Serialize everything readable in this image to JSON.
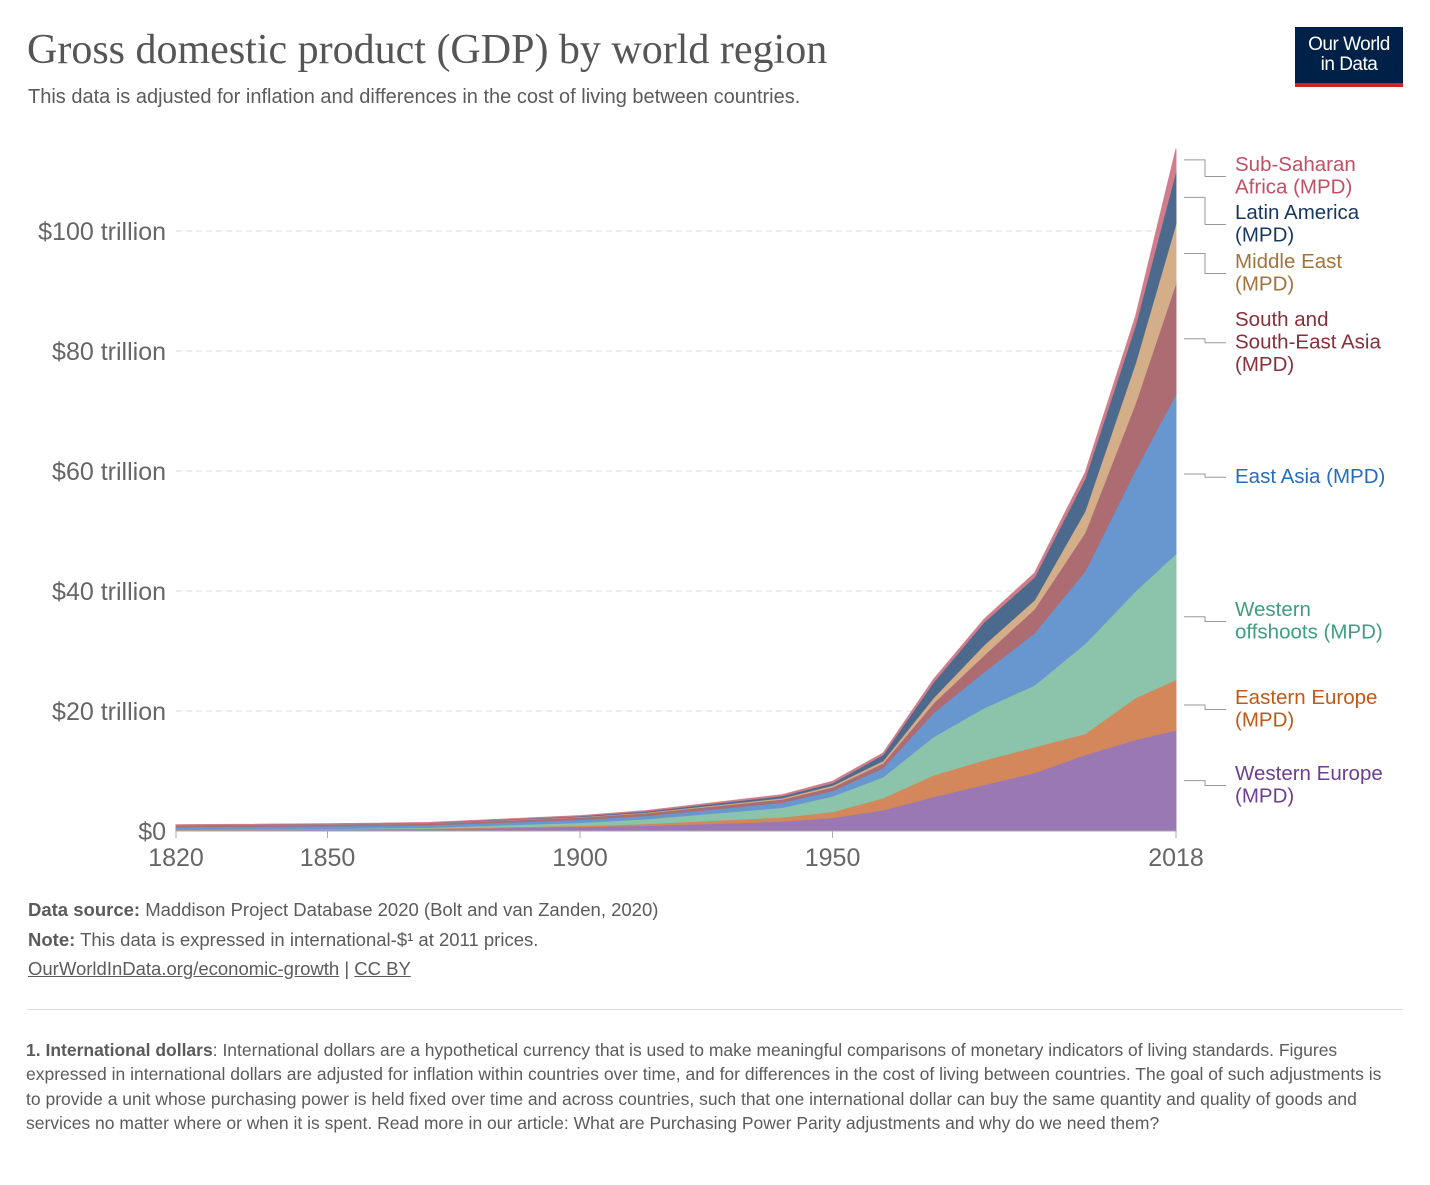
{
  "header": {
    "title": "Gross domestic product (GDP) by world region",
    "subtitle": "This data is adjusted for inflation and differences in the cost of living between countries.",
    "logo": [
      "Our World",
      "in Data"
    ]
  },
  "chart_data": {
    "type": "area",
    "stacked": true,
    "title": "Gross domestic product (GDP) by world region",
    "x": [
      1820,
      1850,
      1870,
      1900,
      1913,
      1940,
      1950,
      1960,
      1970,
      1980,
      1990,
      2000,
      2010,
      2018
    ],
    "xlim": [
      1820,
      2018
    ],
    "x_ticks": [
      {
        "value": 1820,
        "label": "1820"
      },
      {
        "value": 1850,
        "label": "1850"
      },
      {
        "value": 1900,
        "label": "1900"
      },
      {
        "value": 1950,
        "label": "1950"
      },
      {
        "value": 2018,
        "label": "2018"
      }
    ],
    "ylim": [
      0,
      114
    ],
    "y_unit": "trillion international-$",
    "y_ticks": [
      {
        "value": 0,
        "label": "$0"
      },
      {
        "value": 20,
        "label": "$20 trillion"
      },
      {
        "value": 40,
        "label": "$40 trillion"
      },
      {
        "value": 60,
        "label": "$60 trillion"
      },
      {
        "value": 80,
        "label": "$80 trillion"
      },
      {
        "value": 100,
        "label": "$100 trillion"
      }
    ],
    "grid": "horizontal dashed",
    "legend": "right (inline labels)",
    "series": [
      {
        "name": "Western Europe (MPD)",
        "label_lines": [
          "Western Europe",
          "(MPD)"
        ],
        "color": "#9a78b4",
        "text_color": "#6d3e91",
        "values": [
          0.16,
          0.25,
          0.35,
          0.7,
          0.9,
          1.6,
          2.2,
          3.5,
          5.7,
          7.7,
          9.7,
          12.7,
          15.2,
          16.8
        ]
      },
      {
        "name": "Eastern Europe (MPD)",
        "label_lines": [
          "Eastern Europe",
          "(MPD)"
        ],
        "color": "#d3875a",
        "text_color": "#c05917",
        "values": [
          0.04,
          0.06,
          0.09,
          0.2,
          0.3,
          0.7,
          1.0,
          2.0,
          3.6,
          4.1,
          4.3,
          3.5,
          7.0,
          8.4
        ]
      },
      {
        "name": "Western offshoots (MPD)",
        "label_lines": [
          "Western",
          "offshoots (MPD)"
        ],
        "color": "#8bc4aa",
        "text_color": "#3f9e80",
        "values": [
          0.02,
          0.07,
          0.15,
          0.5,
          0.8,
          1.6,
          2.6,
          3.5,
          6.4,
          8.7,
          10.3,
          15.0,
          17.8,
          21.0
        ]
      },
      {
        "name": "East Asia (MPD)",
        "label_lines": [
          "East Asia (MPD)"
        ],
        "color": "#6897cf",
        "text_color": "#286bbb",
        "values": [
          0.48,
          0.45,
          0.4,
          0.5,
          0.55,
          0.85,
          0.9,
          1.5,
          4.0,
          6.0,
          8.7,
          12.1,
          20.2,
          26.6
        ]
      },
      {
        "name": "South and South-East Asia (MPD)",
        "label_lines": [
          "South and",
          "South-East Asia",
          "(MPD)"
        ],
        "color": "#ad6b72",
        "text_color": "#883039",
        "values": [
          0.25,
          0.25,
          0.28,
          0.4,
          0.45,
          0.55,
          0.6,
          0.8,
          1.6,
          2.8,
          4.0,
          6.4,
          11.1,
          18.5
        ]
      },
      {
        "name": "Middle East (MPD)",
        "label_lines": [
          "Middle East",
          "(MPD)"
        ],
        "color": "#d4ae88",
        "text_color": "#a2733b",
        "values": [
          0.03,
          0.04,
          0.05,
          0.08,
          0.1,
          0.2,
          0.3,
          0.4,
          0.9,
          1.7,
          1.5,
          3.6,
          6.7,
          9.9
        ]
      },
      {
        "name": "Latin America (MPD)",
        "label_lines": [
          "Latin America",
          "(MPD)"
        ],
        "color": "#4c6a8d",
        "text_color": "#18375f",
        "values": [
          0.03,
          0.04,
          0.05,
          0.12,
          0.2,
          0.35,
          0.4,
          1.0,
          2.6,
          3.8,
          3.8,
          5.4,
          6.3,
          8.8
        ]
      },
      {
        "name": "Sub-Saharan Africa (MPD)",
        "label_lines": [
          "Sub-Saharan",
          "Africa (MPD)"
        ],
        "color": "#d07c8a",
        "text_color": "#c15065",
        "values": [
          0.03,
          0.04,
          0.05,
          0.07,
          0.1,
          0.2,
          0.3,
          0.3,
          0.5,
          0.5,
          0.7,
          1.0,
          1.5,
          3.7
        ]
      }
    ]
  },
  "footer": {
    "source_label": "Data source:",
    "source_text": "Maddison Project Database 2020 (Bolt and van Zanden, 2020)",
    "note_label": "Note:",
    "note_text": "This data is expressed in international-$¹ at 2011 prices.",
    "link": "OurWorldInData.org/economic-growth",
    "separator": "|",
    "license": "CC BY",
    "footnote_label": "1. International dollars",
    "footnote_text": ": International dollars are a hypothetical currency that is used to make meaningful comparisons of monetary indicators of living standards. Figures expressed in international dollars are adjusted for inflation within countries over time, and for differences in the cost of living between countries. The goal of such adjustments is to provide a unit whose purchasing power is held fixed over time and across countries, such that one international dollar can buy the same quantity and quality of goods and services no matter where or when it is spent. Read more in our article: What are Purchasing Power Parity adjustments and why do we need them?"
  }
}
